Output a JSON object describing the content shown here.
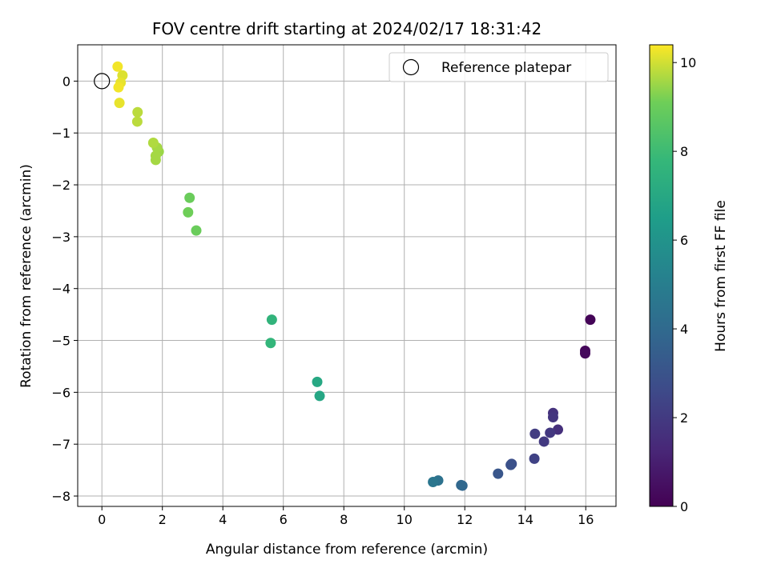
{
  "chart_data": {
    "type": "scatter",
    "title": "FOV centre drift starting at 2024/02/17 18:31:42",
    "xlabel": "Angular distance from reference (arcmin)",
    "ylabel": "Rotation from reference (arcmin)",
    "xlim": [
      -0.8,
      17
    ],
    "ylim": [
      -8.2,
      0.7
    ],
    "xticks": [
      0,
      2,
      4,
      6,
      8,
      10,
      12,
      14,
      16
    ],
    "yticks": [
      0,
      -1,
      -2,
      -3,
      -4,
      -5,
      -6,
      -7,
      -8
    ],
    "grid": true,
    "legend": {
      "position": "top-right",
      "label": "Reference platepar"
    },
    "reference_point": {
      "x": 0,
      "y": 0
    },
    "colorbar": {
      "label": "Hours from first FF file",
      "range": [
        0,
        10.4
      ],
      "ticks": [
        0,
        2,
        4,
        6,
        8,
        10
      ],
      "colormap": "viridis"
    },
    "points": [
      {
        "x": 16.15,
        "y": -4.6,
        "c": 0.1
      },
      {
        "x": 15.98,
        "y": -5.2,
        "c": 0.2
      },
      {
        "x": 15.98,
        "y": -5.25,
        "c": 0.3
      },
      {
        "x": 15.08,
        "y": -6.72,
        "c": 1.6
      },
      {
        "x": 14.92,
        "y": -6.4,
        "c": 1.7
      },
      {
        "x": 14.92,
        "y": -6.48,
        "c": 1.8
      },
      {
        "x": 14.82,
        "y": -6.78,
        "c": 1.9
      },
      {
        "x": 14.62,
        "y": -6.95,
        "c": 2.0
      },
      {
        "x": 14.32,
        "y": -6.8,
        "c": 2.1
      },
      {
        "x": 14.3,
        "y": -7.28,
        "c": 2.3
      },
      {
        "x": 13.55,
        "y": -7.38,
        "c": 2.8
      },
      {
        "x": 13.52,
        "y": -7.4,
        "c": 2.9
      },
      {
        "x": 13.1,
        "y": -7.57,
        "c": 3.1
      },
      {
        "x": 11.92,
        "y": -7.8,
        "c": 3.8
      },
      {
        "x": 11.88,
        "y": -7.79,
        "c": 3.9
      },
      {
        "x": 11.12,
        "y": -7.7,
        "c": 4.4
      },
      {
        "x": 10.95,
        "y": -7.73,
        "c": 4.6
      },
      {
        "x": 7.2,
        "y": -6.07,
        "c": 6.9
      },
      {
        "x": 7.12,
        "y": -5.8,
        "c": 7.0
      },
      {
        "x": 5.62,
        "y": -4.6,
        "c": 7.6
      },
      {
        "x": 5.58,
        "y": -5.05,
        "c": 7.7
      },
      {
        "x": 3.12,
        "y": -2.88,
        "c": 9.0
      },
      {
        "x": 2.9,
        "y": -2.25,
        "c": 9.0
      },
      {
        "x": 2.85,
        "y": -2.53,
        "c": 9.1
      },
      {
        "x": 1.88,
        "y": -1.36,
        "c": 9.5
      },
      {
        "x": 1.82,
        "y": -1.28,
        "c": 9.6
      },
      {
        "x": 1.78,
        "y": -1.44,
        "c": 9.6
      },
      {
        "x": 1.78,
        "y": -1.52,
        "c": 9.6
      },
      {
        "x": 1.7,
        "y": -1.19,
        "c": 9.7
      },
      {
        "x": 1.18,
        "y": -0.6,
        "c": 9.8
      },
      {
        "x": 1.17,
        "y": -0.78,
        "c": 9.8
      },
      {
        "x": 0.68,
        "y": 0.11,
        "c": 10.1
      },
      {
        "x": 0.62,
        "y": -0.03,
        "c": 10.2
      },
      {
        "x": 0.58,
        "y": -0.42,
        "c": 10.2
      },
      {
        "x": 0.55,
        "y": -0.12,
        "c": 10.3
      },
      {
        "x": 0.52,
        "y": 0.28,
        "c": 10.3
      }
    ]
  }
}
